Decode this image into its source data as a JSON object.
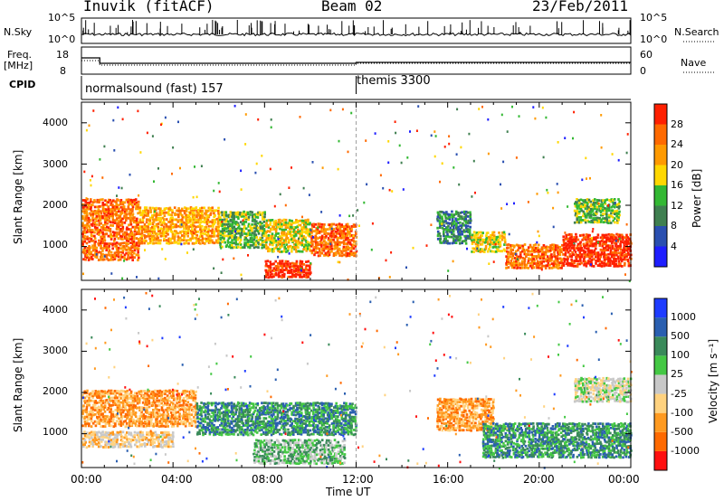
{
  "header": {
    "station": "Inuvik (fitACF)",
    "beam": "Beam 02",
    "date": "23/Feb/2011"
  },
  "top_panels": {
    "nsky_label": "N.Sky",
    "nsky_ticks": [
      "10^5",
      "10^0"
    ],
    "nsearch_label": "N.Search",
    "nsearch_ticks": [
      "10^5",
      "10^0"
    ],
    "freq_label_1": "Freq.",
    "freq_label_2": "[MHz]",
    "freq_ticks": [
      "18",
      "8"
    ],
    "nave_label": "Nave",
    "nave_ticks": [
      "60",
      "0"
    ],
    "cpid_label": "CPID",
    "cpid_modes": [
      {
        "name": "normalsound (fast) 157",
        "start_hour": 0,
        "end_hour": 12
      },
      {
        "name": "themis 3300",
        "start_hour": 12,
        "end_hour": 24
      }
    ]
  },
  "chart_data": [
    {
      "type": "heatmap",
      "panel": "power",
      "ylabel": "Slant Range [km]",
      "yticks": [
        "1000",
        "2000",
        "3000",
        "4000"
      ],
      "ylim": [
        180,
        4500
      ],
      "xlim": [
        0,
        24
      ],
      "colorbar": {
        "label": "Power [dB]",
        "ticks": [
          "4",
          "8",
          "12",
          "16",
          "20",
          "24",
          "28"
        ],
        "colors": [
          "#1e1eff",
          "#2a4fb0",
          "#3f7f50",
          "#33b833",
          "#ffd700",
          "#ff9a00",
          "#ff6a00",
          "#ff2000"
        ]
      },
      "regions": [
        {
          "h0": 0.0,
          "h1": 2.5,
          "r0": 700,
          "r1": 2200,
          "level": 6
        },
        {
          "h0": 2.5,
          "h1": 6.0,
          "r0": 1100,
          "r1": 2000,
          "level": 5
        },
        {
          "h0": 6.0,
          "h1": 8.0,
          "r0": 1000,
          "r1": 1900,
          "level": 3
        },
        {
          "h0": 8.0,
          "h1": 10.0,
          "r0": 900,
          "r1": 1700,
          "level": 4
        },
        {
          "h0": 8.0,
          "h1": 10.0,
          "r0": 280,
          "r1": 700,
          "level": 7
        },
        {
          "h0": 10.0,
          "h1": 12.0,
          "r0": 800,
          "r1": 1600,
          "level": 6
        },
        {
          "h0": 15.5,
          "h1": 17.0,
          "r0": 1100,
          "r1": 1900,
          "level": 2
        },
        {
          "h0": 17.0,
          "h1": 18.5,
          "r0": 900,
          "r1": 1400,
          "level": 4
        },
        {
          "h0": 18.5,
          "h1": 21.0,
          "r0": 500,
          "r1": 1100,
          "level": 6
        },
        {
          "h0": 21.0,
          "h1": 24.0,
          "r0": 550,
          "r1": 1350,
          "level": 7
        },
        {
          "h0": 21.5,
          "h1": 23.5,
          "r0": 1600,
          "r1": 2200,
          "level": 3
        }
      ]
    },
    {
      "type": "heatmap",
      "panel": "velocity",
      "ylabel": "Slant Range [km]",
      "yticks": [
        "1000",
        "2000",
        "3000",
        "4000"
      ],
      "ylim": [
        180,
        4500
      ],
      "xlim": [
        0,
        24
      ],
      "colorbar": {
        "label": "Velocity [m s⁻¹]",
        "ticks": [
          "1000",
          "500",
          "100",
          "25",
          "-25",
          "-100",
          "-500",
          "-1000"
        ],
        "colors": [
          "#1e3cff",
          "#2a5fb0",
          "#3a8a5a",
          "#44c844",
          "#c8c8c8",
          "#ffd27f",
          "#ff9a20",
          "#ff6a00",
          "#ff1010"
        ]
      },
      "regions": [
        {
          "h0": 0.0,
          "h1": 5.0,
          "r0": 1200,
          "r1": 2100,
          "level": 6
        },
        {
          "h0": 0.0,
          "h1": 4.0,
          "r0": 700,
          "r1": 1100,
          "level": 5
        },
        {
          "h0": 5.0,
          "h1": 12.0,
          "r0": 1000,
          "r1": 1800,
          "level": 2
        },
        {
          "h0": 7.5,
          "h1": 11.5,
          "r0": 300,
          "r1": 900,
          "level": 3
        },
        {
          "h0": 15.5,
          "h1": 18.0,
          "r0": 1100,
          "r1": 1900,
          "level": 6
        },
        {
          "h0": 17.5,
          "h1": 24.0,
          "r0": 450,
          "r1": 1300,
          "level": 2
        },
        {
          "h0": 21.5,
          "h1": 24.0,
          "r0": 1800,
          "r1": 2400,
          "level": 4
        }
      ]
    }
  ],
  "x_axis": {
    "ticks": [
      "00:00",
      "04:00",
      "08:00",
      "12:00",
      "16:00",
      "20:00",
      "00:00"
    ],
    "label": "Time UT"
  },
  "frame_color": "#000000",
  "divider_color": "#a0a0a0"
}
